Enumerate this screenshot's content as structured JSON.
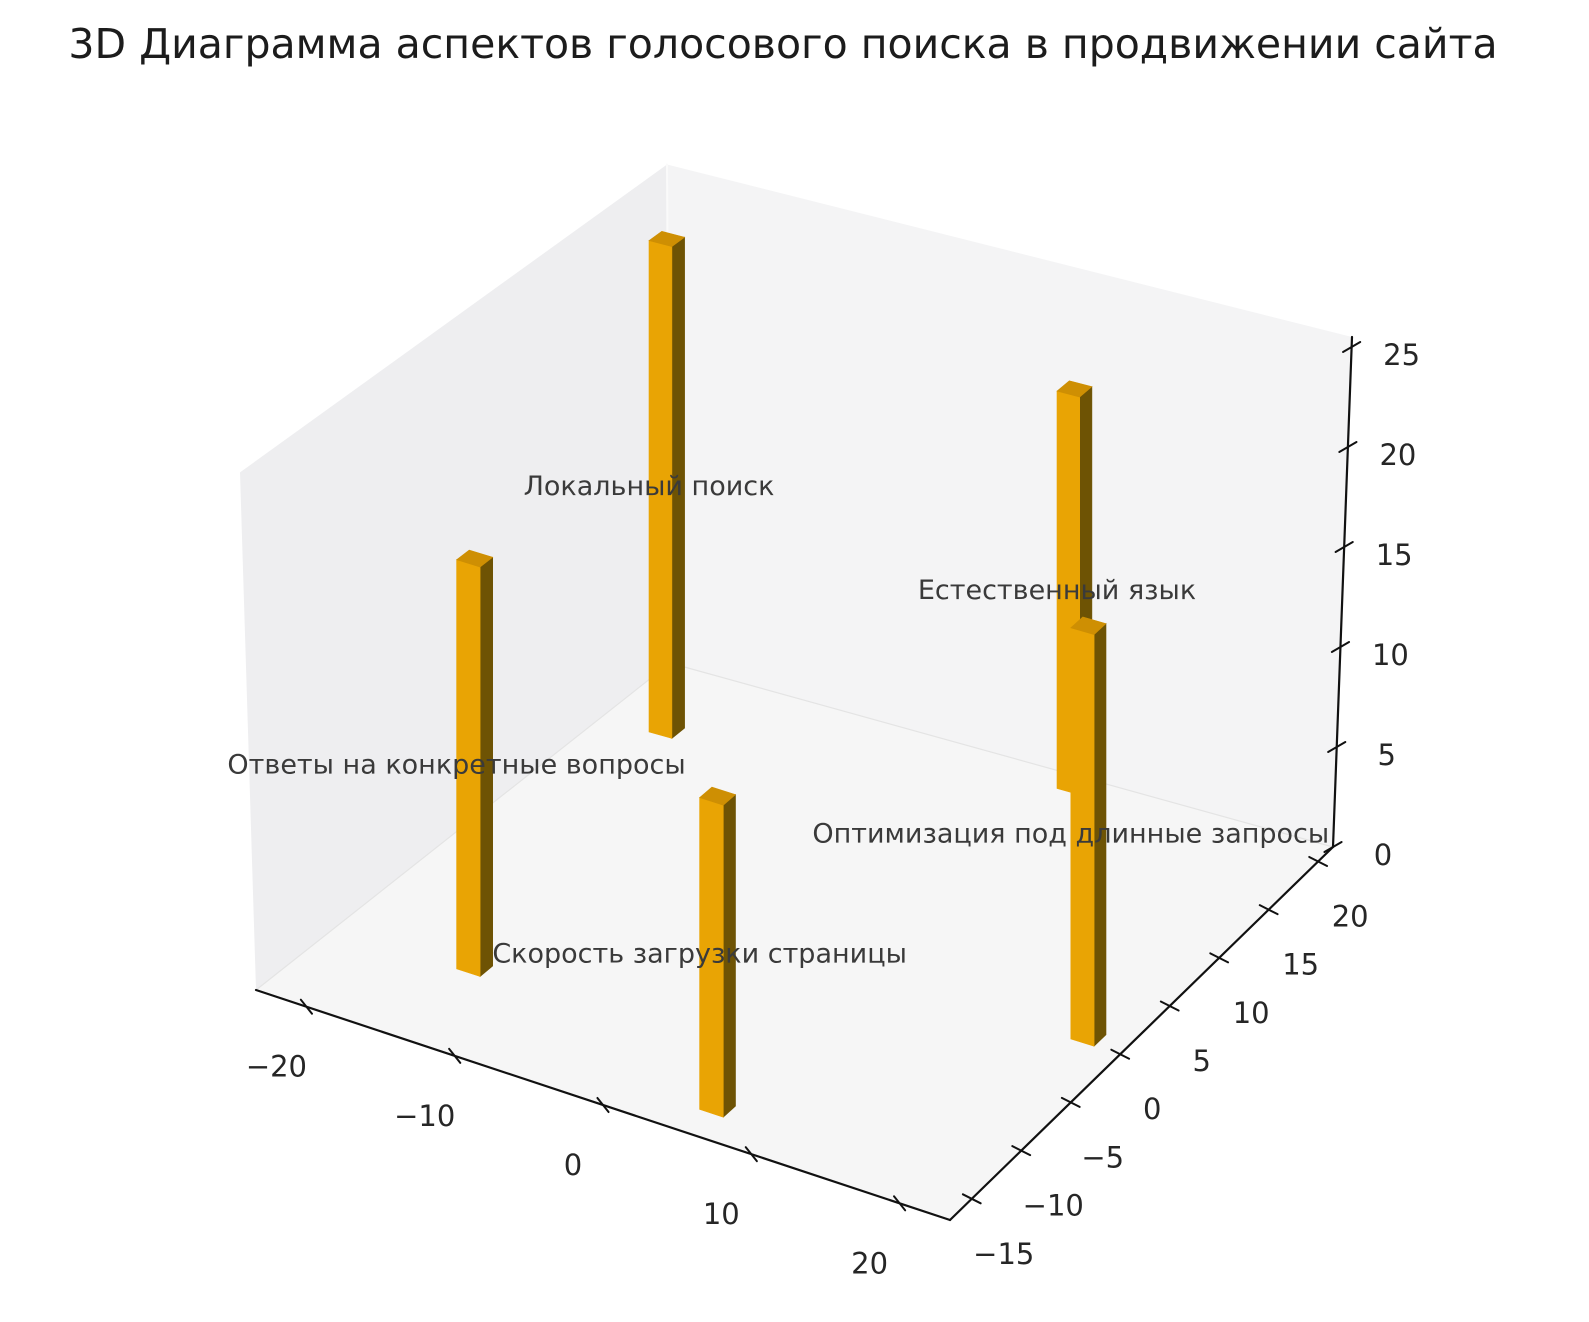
{
  "title": "3D Диаграмма аспектов голосового поиска в продвижении сайта",
  "chart_data": {
    "type": "bar",
    "projection": "3d",
    "title": "3D Диаграмма аспектов голосового поиска в продвижении сайта",
    "bars": [
      {
        "label": "Локальный поиск",
        "x": -20,
        "y": 15,
        "value": 25
      },
      {
        "label": "Ответы на конкретные вопросы",
        "x": -15,
        "y": -10,
        "value": 20
      },
      {
        "label": "Скорость загрузки страницы",
        "x": 5,
        "y": -15,
        "value": 15
      },
      {
        "label": "Естественный язык",
        "x": 5,
        "y": 20,
        "value": 20
      },
      {
        "label": "Оптимизация под длинные запросы",
        "x": 20,
        "y": 0,
        "value": 20
      }
    ],
    "xticks": [
      -20,
      -10,
      0,
      10,
      20
    ],
    "yticks": [
      -15,
      -10,
      -5,
      0,
      5,
      10,
      15,
      20
    ],
    "zticks": [
      0,
      5,
      10,
      15,
      20,
      25
    ],
    "xlim": [
      -23.4,
      23.4
    ],
    "ylim": [
      -17.2,
      21.5
    ],
    "zlim": [
      0,
      25.5
    ],
    "grid": false,
    "legend": null,
    "bar_color_name": "orange",
    "colors": {
      "bar_front": "#E9A404",
      "bar_side": "#6E5304",
      "bar_top": "#CE8F03",
      "wall_left": "#eeeef0",
      "wall_right": "#f4f4f5",
      "floor": "#f6f6f6",
      "seam": "#e4e4e4",
      "back_seam": "#fafafa",
      "axis": "#111111",
      "tick_label": "#262626",
      "bar_label": "#3a3a3a",
      "title": "#1c1c1c",
      "background": "#ffffff"
    }
  }
}
